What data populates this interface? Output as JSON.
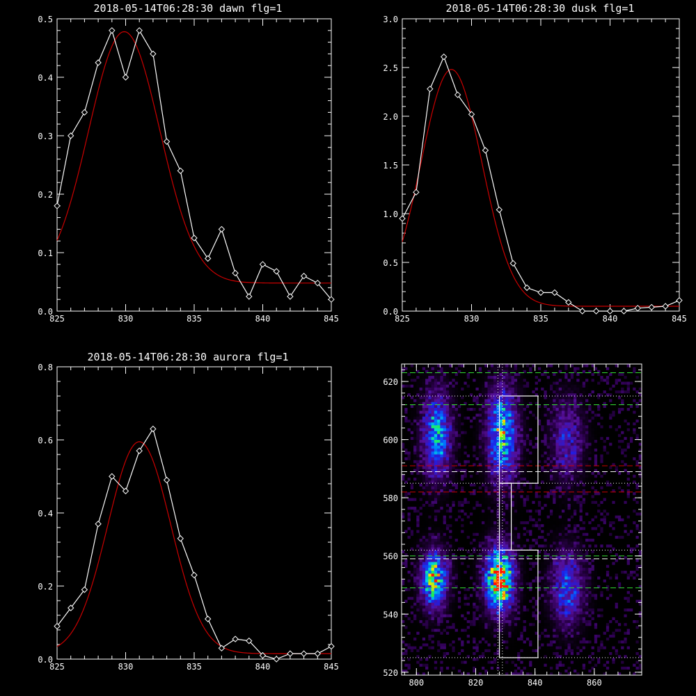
{
  "colors": {
    "background": "#000000",
    "axes": "#ffffff",
    "data_line": "#ffffff",
    "fit_line": "#cc0000",
    "green_dashed": "#33dd33",
    "red_dashed": "#cc0000",
    "white_dashed": "#ffffff",
    "dotted": "#ffffff"
  },
  "chart_data": [
    {
      "id": "dawn",
      "type": "line",
      "title": "2018-05-14T06:28:30 dawn flg=1",
      "xlim": [
        825,
        845
      ],
      "ylim": [
        0,
        0.5
      ],
      "xticks": [
        825,
        830,
        835,
        840,
        845
      ],
      "xtick_labels": [
        "825",
        "830",
        "835",
        "840",
        "845"
      ],
      "yticks": [
        0,
        0.1,
        0.2,
        0.3,
        0.4,
        0.5
      ],
      "ytick_labels": [
        "0.0",
        "0.1",
        "0.2",
        "0.3",
        "0.4",
        "0.5"
      ],
      "series": [
        {
          "style": "data",
          "marker": "diamond",
          "x": [
            825,
            826,
            827,
            828,
            829,
            830,
            831,
            832,
            833,
            834,
            835,
            836,
            837,
            838,
            839,
            840,
            841,
            842,
            843,
            844,
            845
          ],
          "y": [
            0.18,
            0.3,
            0.34,
            0.425,
            0.48,
            0.4,
            0.48,
            0.44,
            0.29,
            0.24,
            0.125,
            0.09,
            0.14,
            0.065,
            0.025,
            0.08,
            0.068,
            0.025,
            0.06,
            0.048,
            0.02
          ]
        },
        {
          "style": "fit",
          "gaussian": {
            "amplitude": 0.43,
            "center": 829.9,
            "sigma": 2.6,
            "offset": 0.048
          }
        }
      ]
    },
    {
      "id": "dusk",
      "type": "line",
      "title": "2018-05-14T06:28:30 dusk flg=1",
      "xlim": [
        825,
        845
      ],
      "ylim": [
        0,
        3.0
      ],
      "xticks": [
        825,
        830,
        835,
        840,
        845
      ],
      "xtick_labels": [
        "825",
        "830",
        "835",
        "840",
        "845"
      ],
      "yticks": [
        0,
        0.5,
        1.0,
        1.5,
        2.0,
        2.5,
        3.0
      ],
      "ytick_labels": [
        "0.0",
        "0.5",
        "1.0",
        "1.5",
        "2.0",
        "2.5",
        "3.0"
      ],
      "series": [
        {
          "style": "data",
          "marker": "diamond",
          "x": [
            825,
            826,
            827,
            828,
            829,
            830,
            831,
            832,
            833,
            834,
            835,
            836,
            837,
            838,
            839,
            840,
            841,
            842,
            843,
            844,
            845
          ],
          "y": [
            0.95,
            1.22,
            2.28,
            2.61,
            2.22,
            2.02,
            1.65,
            1.04,
            0.49,
            0.24,
            0.19,
            0.19,
            0.09,
            0.0,
            0.0,
            0.0,
            0.0,
            0.03,
            0.04,
            0.05,
            0.11
          ]
        },
        {
          "style": "fit",
          "gaussian": {
            "amplitude": 2.43,
            "center": 828.55,
            "sigma": 2.2,
            "offset": 0.05
          }
        }
      ]
    },
    {
      "id": "aurora",
      "type": "line",
      "title": "2018-05-14T06:28:30 aurora flg=1",
      "xlim": [
        825,
        845
      ],
      "ylim": [
        0,
        0.8
      ],
      "xticks": [
        825,
        830,
        835,
        840,
        845
      ],
      "xtick_labels": [
        "825",
        "830",
        "835",
        "840",
        "845"
      ],
      "yticks": [
        0,
        0.2,
        0.4,
        0.6,
        0.8
      ],
      "ytick_labels": [
        "0.0",
        "0.2",
        "0.4",
        "0.6",
        "0.8"
      ],
      "series": [
        {
          "style": "data",
          "marker": "diamond",
          "x": [
            825,
            826,
            827,
            828,
            829,
            830,
            831,
            832,
            833,
            834,
            835,
            836,
            837,
            838,
            839,
            840,
            841,
            842,
            843,
            844,
            845
          ],
          "y": [
            0.09,
            0.14,
            0.19,
            0.37,
            0.5,
            0.46,
            0.57,
            0.63,
            0.49,
            0.33,
            0.23,
            0.11,
            0.03,
            0.055,
            0.05,
            0.01,
            0.0,
            0.015,
            0.015,
            0.015,
            0.035
          ]
        },
        {
          "style": "fit",
          "gaussian": {
            "amplitude": 0.58,
            "center": 831.0,
            "sigma": 2.3,
            "offset": 0.015
          }
        }
      ]
    },
    {
      "id": "image",
      "type": "heatmap",
      "title": "",
      "xlim": [
        795,
        876
      ],
      "ylim": [
        519,
        626
      ],
      "xticks": [
        800,
        820,
        840,
        860
      ],
      "xtick_labels": [
        "800",
        "820",
        "840",
        "860"
      ],
      "yticks": [
        520,
        540,
        560,
        580,
        600,
        620
      ],
      "ytick_labels": [
        "520",
        "540",
        "560",
        "580",
        "600",
        "620"
      ],
      "colormap": "blue-green-red on purple",
      "blobs": [
        {
          "x": 807,
          "y": 602,
          "sx": 3.0,
          "sy": 9,
          "peak": 0.55
        },
        {
          "x": 829,
          "y": 602,
          "sx": 3.2,
          "sy": 10,
          "peak": 0.62
        },
        {
          "x": 851,
          "y": 600,
          "sx": 3.5,
          "sy": 9,
          "peak": 0.25
        },
        {
          "x": 806,
          "y": 552,
          "sx": 2.8,
          "sy": 6,
          "peak": 0.75
        },
        {
          "x": 828,
          "y": 552,
          "sx": 3.0,
          "sy": 7,
          "peak": 1.0
        },
        {
          "x": 851,
          "y": 549,
          "sx": 3.5,
          "sy": 8,
          "peak": 0.38
        }
      ],
      "boxes": [
        {
          "x0": 828,
          "x1": 841,
          "y0": 585,
          "y1": 615
        },
        {
          "x0": 828,
          "x1": 832,
          "y0": 562,
          "y1": 585
        },
        {
          "x0": 828,
          "x1": 841,
          "y0": 525,
          "y1": 562
        }
      ],
      "vlines": [
        {
          "x": 827.5,
          "style": "dotted",
          "color": "#ffffff"
        },
        {
          "x": 829,
          "style": "dotted",
          "color": "#ffffff"
        }
      ],
      "hlines": [
        {
          "y": 623,
          "style": "dashed",
          "color": "#33dd33"
        },
        {
          "y": 615,
          "style": "dotted",
          "color": "#ffffff"
        },
        {
          "y": 612,
          "style": "dashed",
          "color": "#33dd33"
        },
        {
          "y": 591,
          "style": "dashed",
          "color": "#cc0000"
        },
        {
          "y": 589,
          "style": "dashed",
          "color": "#ffffff"
        },
        {
          "y": 585,
          "style": "dotted",
          "color": "#ffffff"
        },
        {
          "y": 582,
          "style": "dashed",
          "color": "#cc0000"
        },
        {
          "y": 562,
          "style": "dotted",
          "color": "#ffffff"
        },
        {
          "y": 560,
          "style": "dashed",
          "color": "#33dd33"
        },
        {
          "y": 559,
          "style": "dashed",
          "color": "#ffffff"
        },
        {
          "y": 549,
          "style": "dashed",
          "color": "#33dd33"
        },
        {
          "y": 525,
          "style": "dotted",
          "color": "#ffffff"
        }
      ]
    }
  ]
}
